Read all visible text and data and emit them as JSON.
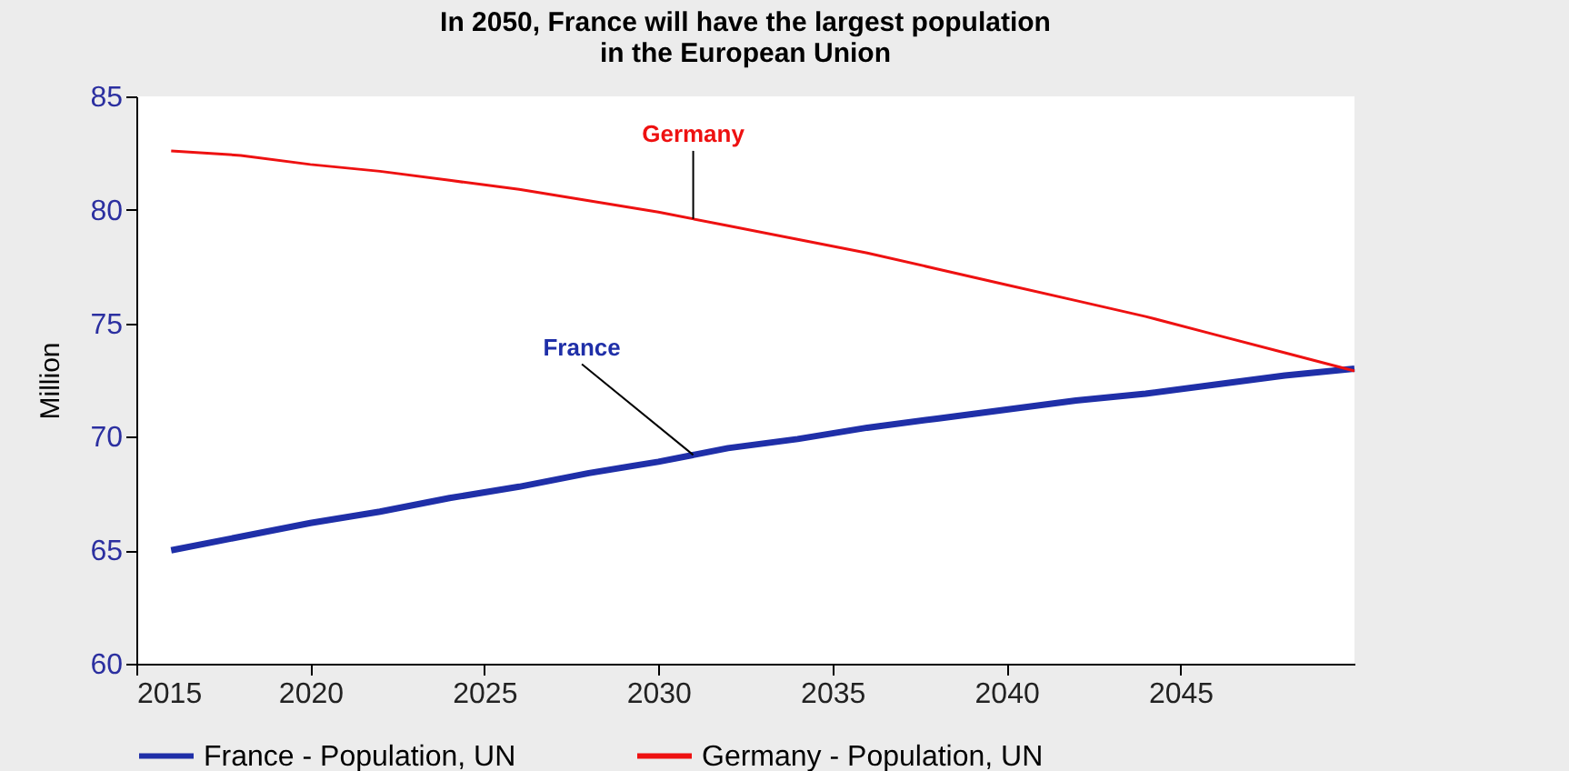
{
  "chart_data": {
    "type": "line",
    "title": "In 2050, France will have the largest population\nin the European Union",
    "ylabel": "Million",
    "x": [
      2016,
      2018,
      2020,
      2022,
      2024,
      2026,
      2028,
      2030,
      2032,
      2034,
      2036,
      2038,
      2040,
      2042,
      2044,
      2046,
      2048,
      2050
    ],
    "series": [
      {
        "name": "France - Population, UN",
        "color": "#1f2fa8",
        "values": [
          65.0,
          65.6,
          66.2,
          66.7,
          67.3,
          67.8,
          68.4,
          68.9,
          69.5,
          69.9,
          70.4,
          70.8,
          71.2,
          71.6,
          71.9,
          72.3,
          72.7,
          73.0
        ]
      },
      {
        "name": "Germany - Population, UN",
        "color": "#ee1111",
        "values": [
          82.6,
          82.4,
          82.0,
          81.7,
          81.3,
          80.9,
          80.4,
          79.9,
          79.3,
          78.7,
          78.1,
          77.4,
          76.7,
          76.0,
          75.3,
          74.5,
          73.7,
          72.9
        ]
      }
    ],
    "annotations": [
      {
        "text": "France",
        "x": 2031,
        "y": 69.2
      },
      {
        "text": "Germany",
        "x": 2031,
        "y": 79.6
      }
    ],
    "xlim": [
      2015,
      2050
    ],
    "xticks": [
      2015,
      2020,
      2025,
      2030,
      2035,
      2040,
      2045
    ],
    "ylim": [
      60,
      85
    ],
    "yticks": [
      60,
      65,
      70,
      75,
      80,
      85
    ],
    "grid": false,
    "legend": "bottom",
    "marker": "none",
    "line_style": "solid"
  }
}
